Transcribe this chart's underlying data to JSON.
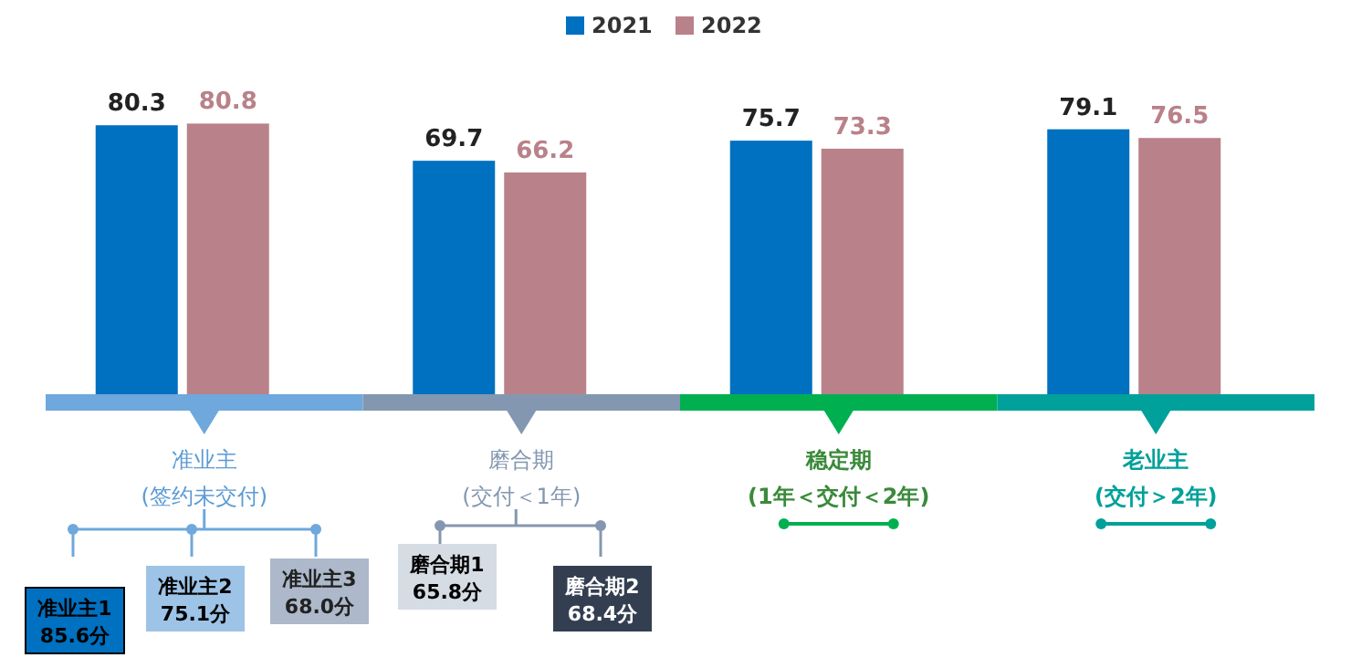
{
  "chart_data": {
    "type": "bar",
    "categories": [
      "准业主\n(签约未交付)",
      "磨合期\n(交付＜1年)",
      "稳定期\n(1年＜交付＜2年)",
      "老业主\n(交付＞2年)"
    ],
    "series": [
      {
        "name": "2021",
        "color": "#0070c0",
        "values": [
          80.3,
          69.7,
          75.7,
          79.1
        ]
      },
      {
        "name": "2022",
        "color": "#b98189",
        "values": [
          80.8,
          66.2,
          73.3,
          76.5
        ]
      }
    ],
    "data_labels": true,
    "legend": "top",
    "annotations": [
      "准业主1\n85.6分",
      "准业主2\n75.1分",
      "准业主3\n68.0分",
      "磨合期1\n65.8分",
      "磨合期2\n68.4分"
    ]
  }
}
